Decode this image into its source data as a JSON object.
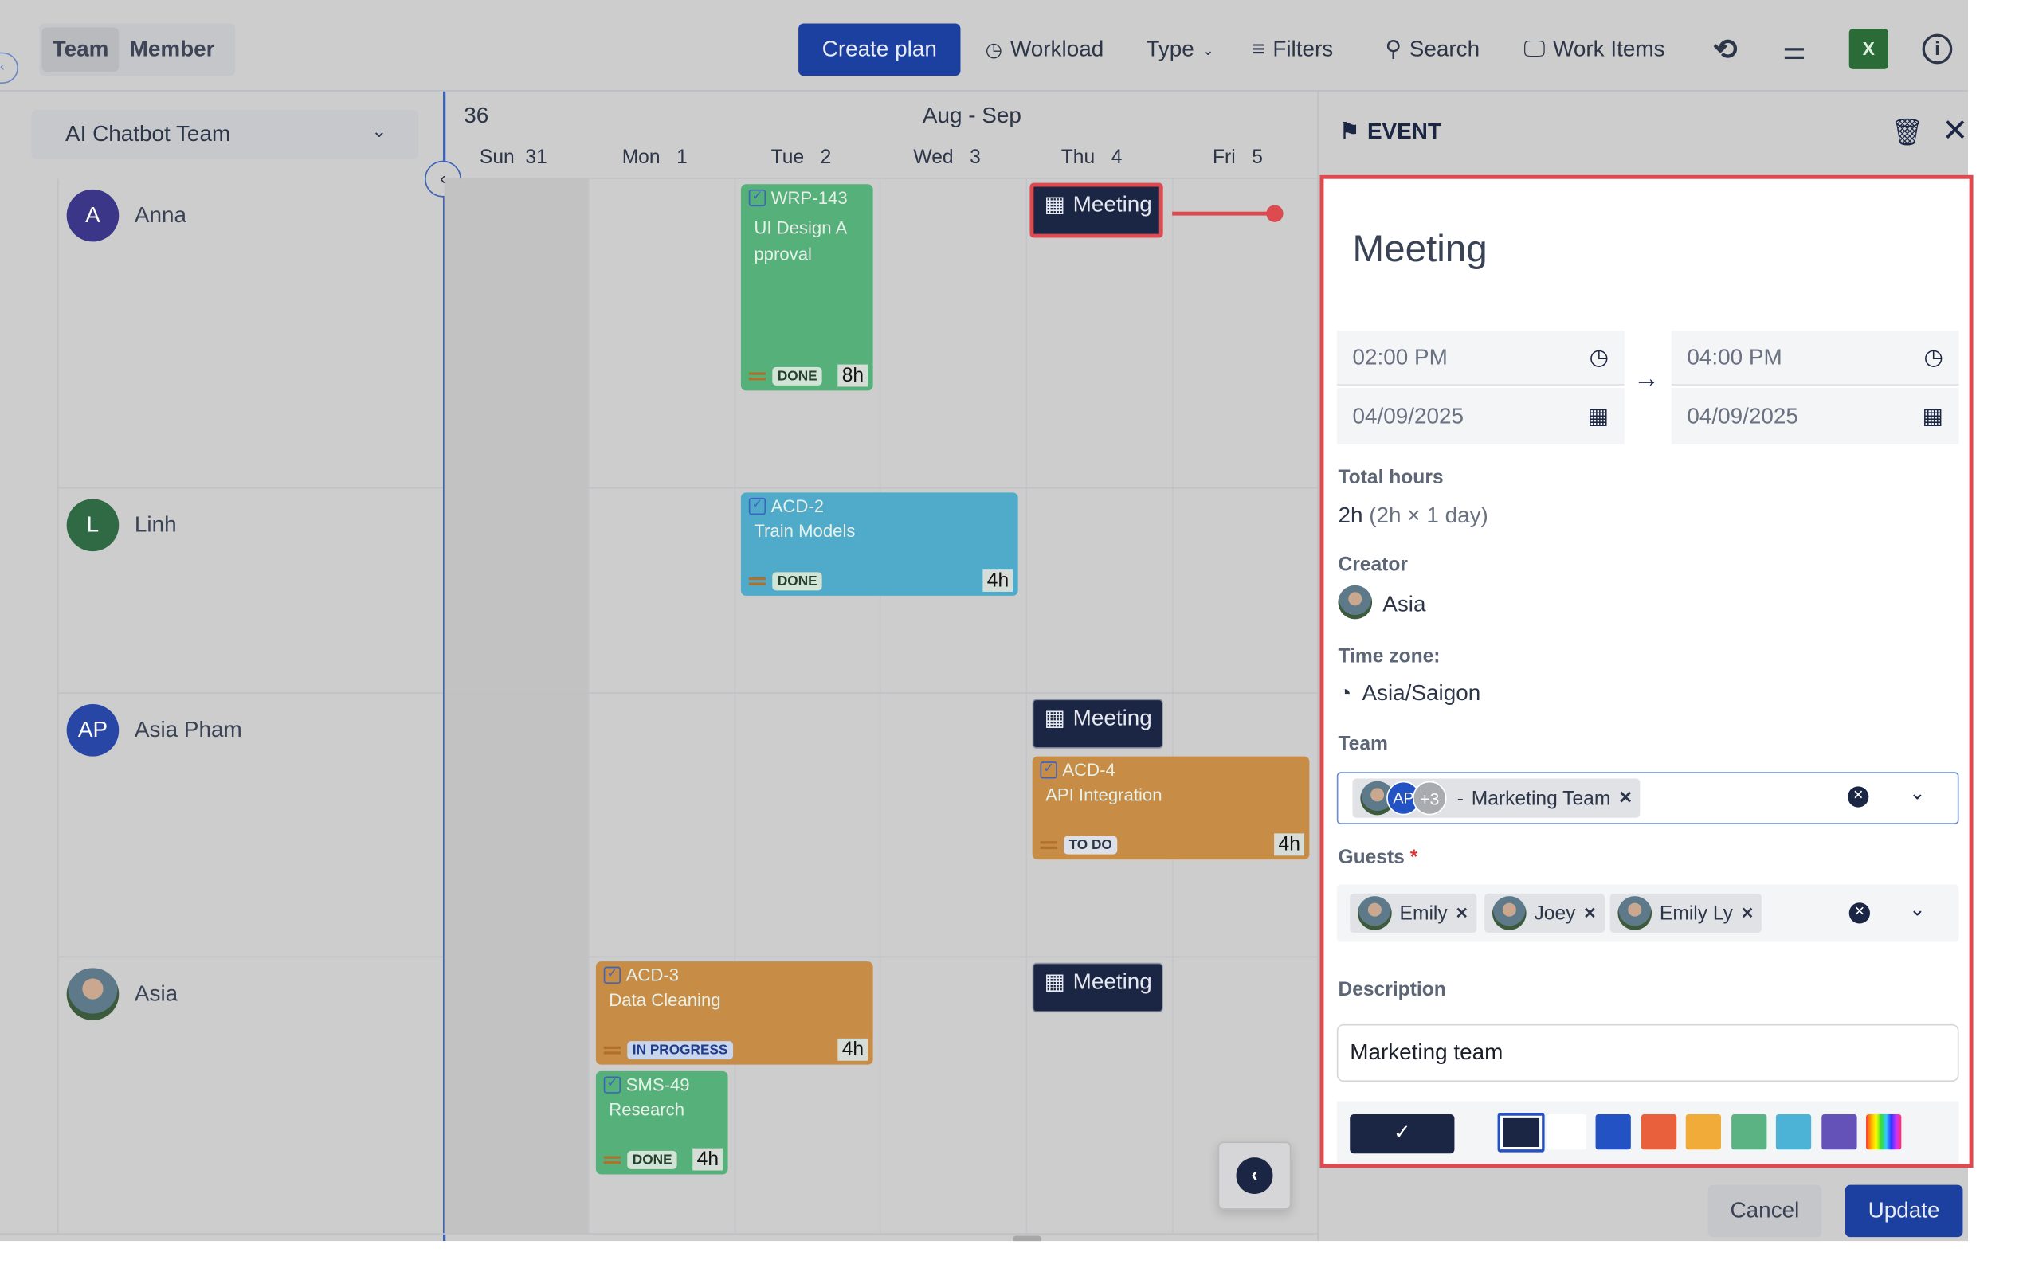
{
  "toolbar": {
    "view_toggle": [
      "Team",
      "Member"
    ],
    "create_plan": "Create plan",
    "workload": "Workload",
    "type": "Type",
    "filters": "Filters",
    "search": "Search",
    "work_items": "Work Items",
    "icons": [
      "refresh-icon",
      "settings-sliders-icon",
      "excel-icon",
      "info-icon"
    ]
  },
  "sidebar": {
    "team_select": "AI Chatbot Team",
    "members": [
      {
        "initials": "A",
        "name": "Anna",
        "color": "#3b3687"
      },
      {
        "initials": "L",
        "name": "Linh",
        "color": "#2f6a44"
      },
      {
        "initials": "AP",
        "name": "Asia Pham",
        "color": "#2746a6"
      },
      {
        "initials": "",
        "name": "Asia",
        "color": "#5a6a4a"
      }
    ]
  },
  "calendar": {
    "week": "36",
    "range": "Aug - Sep",
    "days": [
      {
        "d": "Sun",
        "n": "31"
      },
      {
        "d": "Mon",
        "n": "1"
      },
      {
        "d": "Tue",
        "n": "2"
      },
      {
        "d": "Wed",
        "n": "3"
      },
      {
        "d": "Thu",
        "n": "4"
      },
      {
        "d": "Fri",
        "n": "5"
      }
    ],
    "tasks": [
      {
        "key": "WRP-143",
        "title": "UI Design A pproval",
        "status": "DONE",
        "hours": "8h",
        "color": "#55b07a"
      },
      {
        "key": "ACD-2",
        "title": "Train Models",
        "status": "DONE",
        "hours": "4h",
        "color": "#4fabc9"
      },
      {
        "key": "ACD-4",
        "title": "API Integration",
        "status": "TO DO",
        "hours": "4h",
        "color": "#c78c45"
      },
      {
        "key": "ACD-3",
        "title": "Data Cleaning",
        "status": "IN PROGRESS",
        "hours": "4h",
        "color": "#c78c45"
      },
      {
        "key": "SMS-49",
        "title": "Research",
        "status": "DONE",
        "hours": "4h",
        "color": "#55b07a"
      }
    ],
    "meetings": [
      "Meeting",
      "Meeting",
      "Meeting"
    ]
  },
  "event": {
    "header": "EVENT",
    "title": "Meeting",
    "start_time": "02:00 PM",
    "start_date": "04/09/2025",
    "end_time": "04:00 PM",
    "end_date": "04/09/2025",
    "total_hours_label": "Total hours",
    "total_hours": "2h",
    "total_hours_detail": "(2h × 1 day)",
    "creator_label": "Creator",
    "creator": "Asia",
    "timezone_label": "Time zone:",
    "timezone": "Asia/Saigon",
    "team_label": "Team",
    "team_avatar_initials": "AP",
    "team_extra": "+3",
    "team_name": "Marketing Team",
    "team_sep": "-",
    "guests_label": "Guests",
    "required_mark": "*",
    "guests": [
      "Emily",
      "Joey",
      "Emily Ly"
    ],
    "description_label": "Description",
    "description": "Marketing team",
    "selected_color": "#1b2645",
    "colors": [
      "#1b2645",
      "#ffffff",
      "#2352c4",
      "#e8603c",
      "#f0ab38",
      "#5bb384",
      "#4db3d6",
      "#6552b8",
      "rainbow"
    ],
    "cancel": "Cancel",
    "update": "Update"
  }
}
